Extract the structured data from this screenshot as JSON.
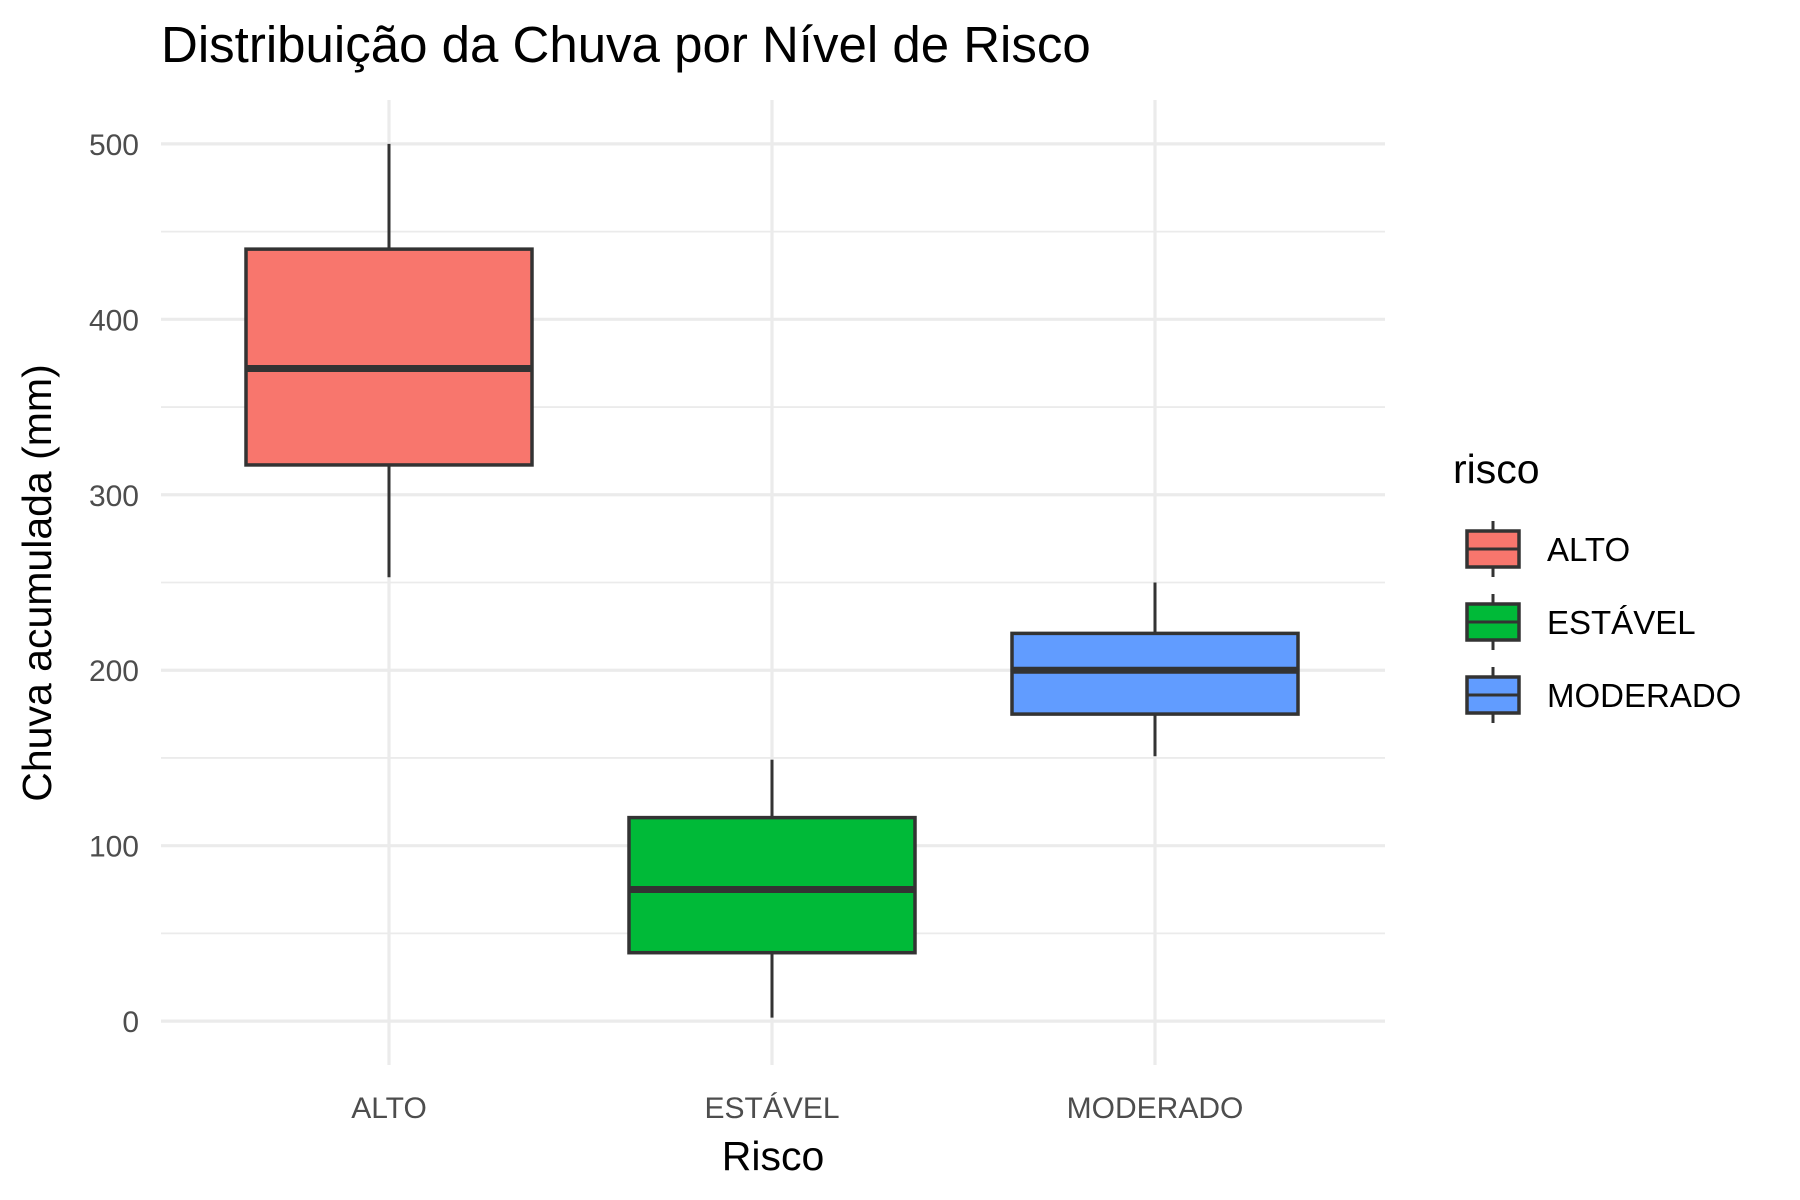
{
  "chart_data": {
    "type": "boxplot",
    "title": "Distribuição da Chuva por Nível de Risco",
    "xlabel": "Risco",
    "ylabel": "Chuva acumulada (mm)",
    "categories": [
      "ALTO",
      "ESTÁVEL",
      "MODERADO"
    ],
    "ylim": [
      -25,
      525
    ],
    "yticks": [
      0,
      100,
      200,
      300,
      400,
      500
    ],
    "grid": true,
    "series": [
      {
        "category": "ALTO",
        "whisker_low": 253,
        "q1": 317,
        "median": 372,
        "q3": 440,
        "whisker_high": 500,
        "color": "#F8766D"
      },
      {
        "category": "ESTÁVEL",
        "whisker_low": 2,
        "q1": 39,
        "median": 75,
        "q3": 116,
        "whisker_high": 149,
        "color": "#00BA38"
      },
      {
        "category": "MODERADO",
        "whisker_low": 151,
        "q1": 175,
        "median": 200,
        "q3": 221,
        "whisker_high": 250,
        "color": "#619CFF"
      }
    ],
    "legend": {
      "title": "risco",
      "position": "right",
      "entries": [
        "ALTO",
        "ESTÁVEL",
        "MODERADO"
      ]
    }
  }
}
